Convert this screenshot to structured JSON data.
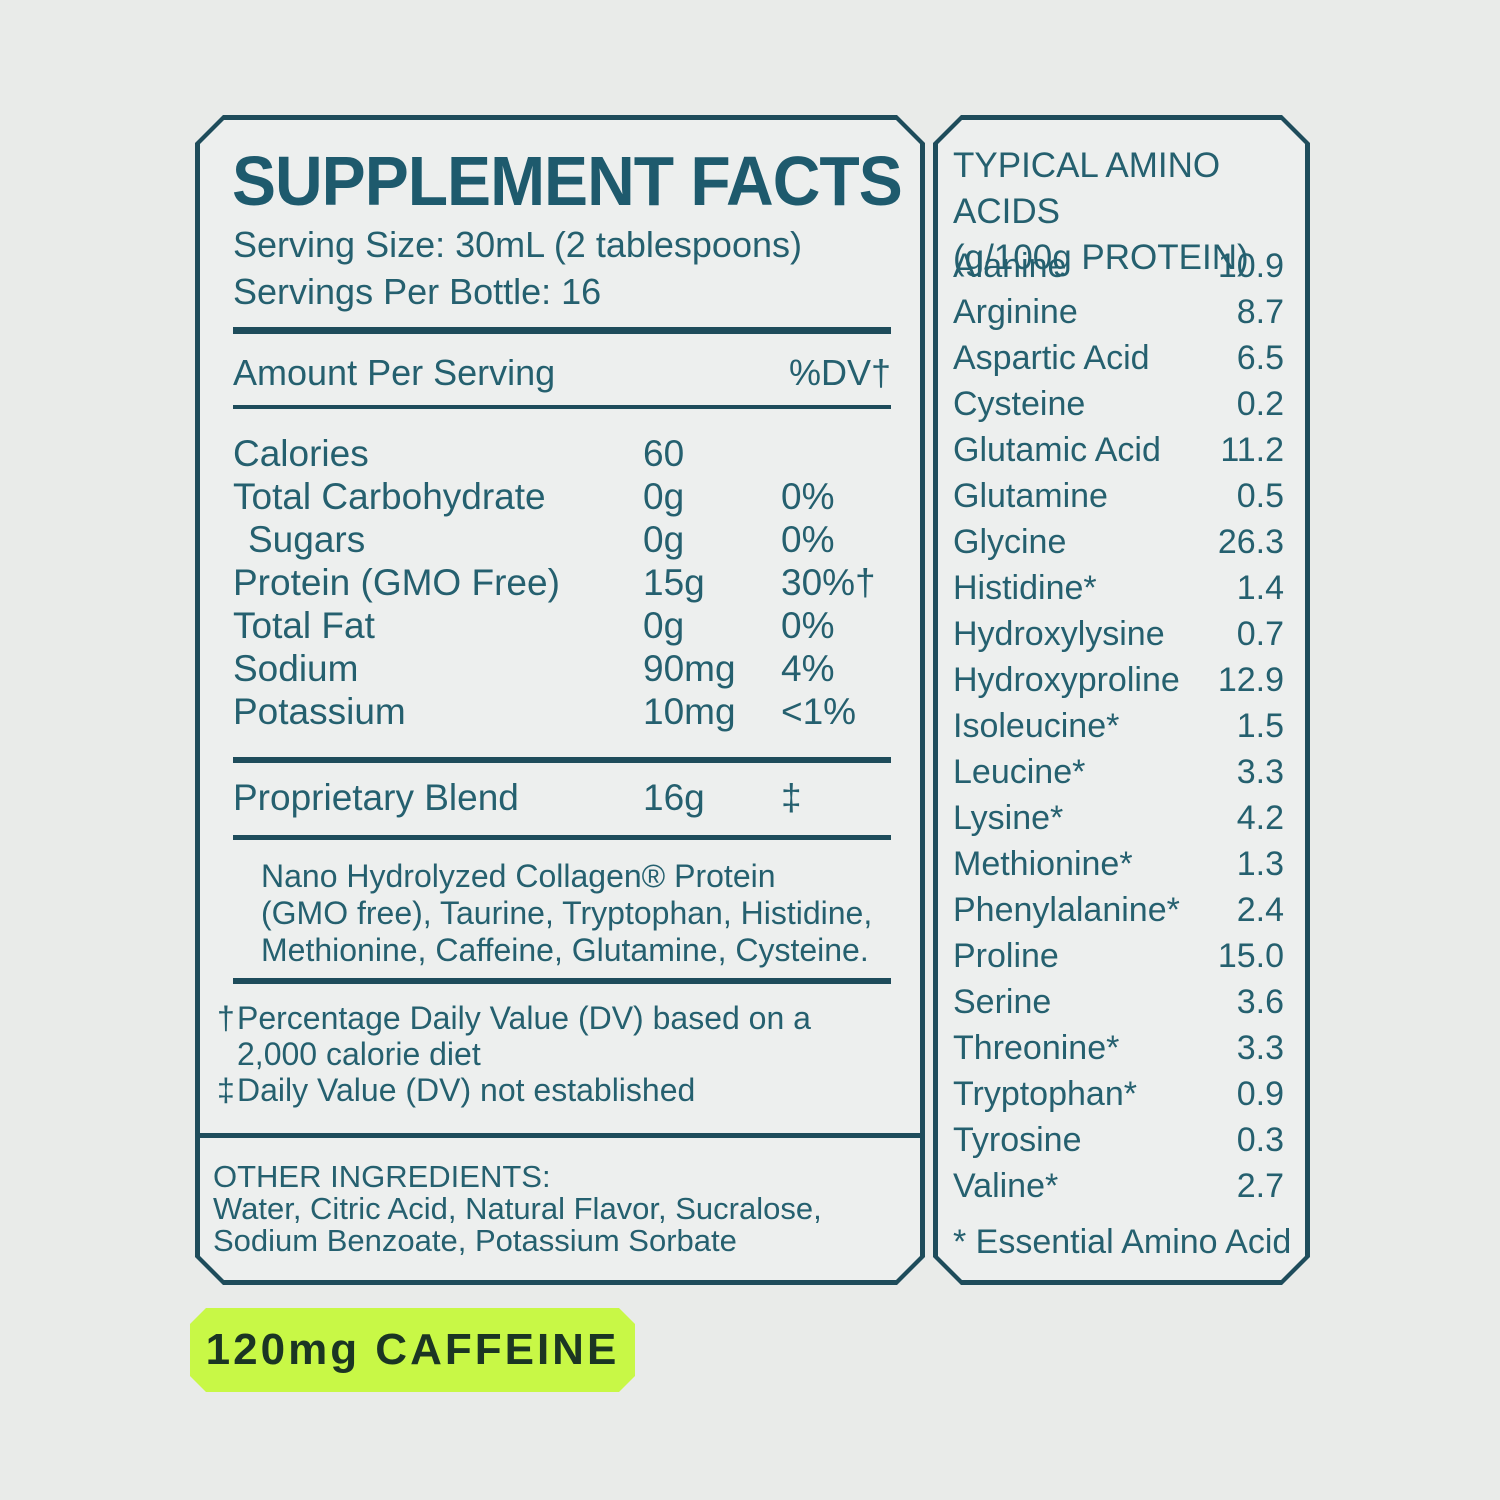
{
  "colors": {
    "background": "#e9ebe9",
    "panel_fill": "#edefee",
    "border_teal": "#1e4c5b",
    "text_teal": "#25606f",
    "badge_background": "#c8f846",
    "badge_text": "#1b3523"
  },
  "supplement_panel": {
    "title": "SUPPLEMENT FACTS",
    "serving_size": "Serving Size: 30mL (2 tablespoons)",
    "servings_per_bottle": "Servings Per Bottle: 16",
    "header": {
      "amount_label": "Amount Per Serving",
      "dv_label": "%DV†"
    },
    "rows": [
      {
        "name": "Calories",
        "amount": "60",
        "dv": ""
      },
      {
        "name": "Total Carbohydrate",
        "amount": "0g",
        "dv": "0%"
      },
      {
        "name": "Sugars",
        "amount": "0g",
        "dv": "0%",
        "indent": true
      },
      {
        "name": "Protein (GMO Free)",
        "amount": "15g",
        "dv": "30%†"
      },
      {
        "name": "Total Fat",
        "amount": "0g",
        "dv": "0%"
      },
      {
        "name": "Sodium",
        "amount": "90mg",
        "dv": "4%"
      },
      {
        "name": "Potassium",
        "amount": "10mg",
        "dv": "<1%"
      }
    ],
    "blend": {
      "name": "Proprietary Blend",
      "amount": "16g",
      "dv": "‡",
      "description_lines": [
        "Nano Hydrolyzed Collagen® Protein",
        "(GMO free), Taurine, Tryptophan, Histidine,",
        "Methionine, Caffeine, Glutamine, Cysteine."
      ]
    },
    "footnotes": [
      {
        "marker": "†",
        "lines": [
          "Percentage Daily Value (DV) based on a",
          "2,000 calorie diet"
        ]
      },
      {
        "marker": "‡",
        "lines": [
          "Daily Value (DV) not established"
        ]
      }
    ],
    "other_ingredients": {
      "label": "OTHER INGREDIENTS:",
      "lines": [
        "Water, Citric Acid, Natural Flavor, Sucralose,",
        "Sodium Benzoate, Potassium Sorbate"
      ]
    }
  },
  "amino_panel": {
    "title_lines": [
      "TYPICAL AMINO ACIDS",
      "(g/100g PROTEIN)"
    ],
    "rows": [
      {
        "name": "Alanine",
        "value": "10.9"
      },
      {
        "name": "Arginine",
        "value": "8.7"
      },
      {
        "name": "Aspartic Acid",
        "value": "6.5"
      },
      {
        "name": "Cysteine",
        "value": "0.2"
      },
      {
        "name": "Glutamic Acid",
        "value": "11.2"
      },
      {
        "name": "Glutamine",
        "value": "0.5"
      },
      {
        "name": "Glycine",
        "value": "26.3"
      },
      {
        "name": "Histidine*",
        "value": "1.4"
      },
      {
        "name": "Hydroxylysine",
        "value": "0.7"
      },
      {
        "name": "Hydroxyproline",
        "value": "12.9"
      },
      {
        "name": "Isoleucine*",
        "value": "1.5"
      },
      {
        "name": "Leucine*",
        "value": "3.3"
      },
      {
        "name": "Lysine*",
        "value": "4.2"
      },
      {
        "name": "Methionine*",
        "value": "1.3"
      },
      {
        "name": "Phenylalanine*",
        "value": "2.4"
      },
      {
        "name": "Proline",
        "value": "15.0"
      },
      {
        "name": "Serine",
        "value": "3.6"
      },
      {
        "name": "Threonine*",
        "value": "3.3"
      },
      {
        "name": "Tryptophan*",
        "value": "0.9"
      },
      {
        "name": "Tyrosine",
        "value": "0.3"
      },
      {
        "name": "Valine*",
        "value": "2.7"
      }
    ],
    "footnote": "* Essential Amino Acid"
  },
  "badge": {
    "label": "120mg CAFFEINE"
  }
}
